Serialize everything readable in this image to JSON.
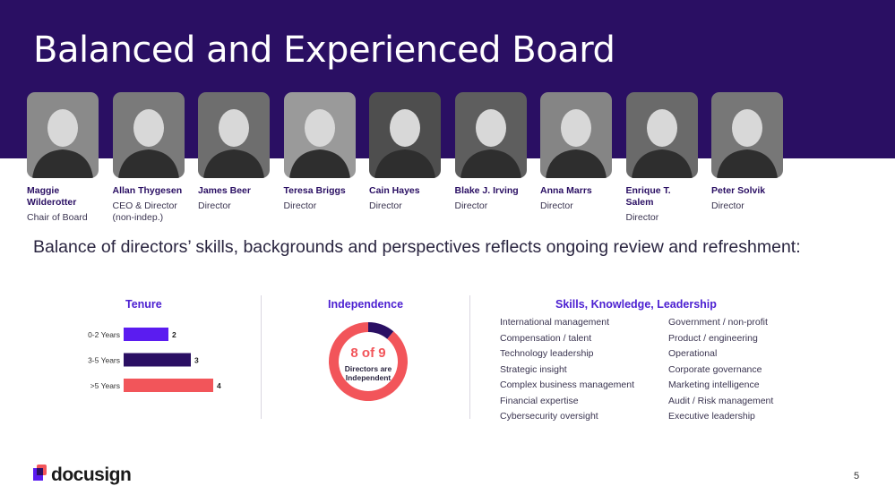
{
  "slide": {
    "title": "Balanced and Experienced Board",
    "lead": "Balance of directors’ skills, backgrounds and perspectives reflects ongoing review and refreshment:",
    "page_number": "5",
    "brand": "docusign"
  },
  "board": [
    {
      "name_line1": "Maggie",
      "name_line2": "Wilderotter",
      "role_line1": "Chair of Board",
      "role_line2": ""
    },
    {
      "name_line1": "Allan Thygesen",
      "name_line2": "",
      "role_line1": "CEO & Director",
      "role_line2": "(non-indep.)"
    },
    {
      "name_line1": "James Beer",
      "name_line2": "",
      "role_line1": "Director",
      "role_line2": ""
    },
    {
      "name_line1": "Teresa Briggs",
      "name_line2": "",
      "role_line1": "Director",
      "role_line2": ""
    },
    {
      "name_line1": "Cain Hayes",
      "name_line2": "",
      "role_line1": "Director",
      "role_line2": ""
    },
    {
      "name_line1": "Blake J. Irving",
      "name_line2": "",
      "role_line1": "Director",
      "role_line2": ""
    },
    {
      "name_line1": "Anna Marrs",
      "name_line2": "",
      "role_line1": "Director",
      "role_line2": ""
    },
    {
      "name_line1": "Enrique T.",
      "name_line2": "Salem",
      "role_line1": "Director",
      "role_line2": ""
    },
    {
      "name_line1": "Peter Solvik",
      "name_line2": "",
      "role_line1": "Director",
      "role_line2": ""
    }
  ],
  "tenure": {
    "heading": "Tenure"
  },
  "independence": {
    "heading": "Independence",
    "big_label": "8 of 9",
    "sub_line1": "Directors are",
    "sub_line2": "Independent",
    "independent": 8,
    "total": 9,
    "colors": {
      "independent": "#f2555a",
      "non_independent": "#2a0f63"
    }
  },
  "skills": {
    "heading": "Skills, Knowledge, Leadership",
    "left": [
      "International management",
      "Compensation / talent",
      "Technology leadership",
      "Strategic insight",
      "Complex business management",
      "Financial expertise",
      "Cybersecurity oversight"
    ],
    "right": [
      "Government / non-profit",
      "Product / engineering",
      "Operational",
      "Corporate governance",
      "Marketing intelligence",
      "Audit / Risk management",
      "Executive leadership"
    ]
  },
  "chart_data": {
    "type": "bar",
    "orientation": "horizontal",
    "title": "Tenure",
    "categories": [
      "0-2 Years",
      "3-5 Years",
      ">5 Years"
    ],
    "values": [
      2,
      3,
      4
    ],
    "colors": [
      "#5b1cf0",
      "#2a0f63",
      "#f2555a"
    ],
    "xlim": [
      0,
      4
    ],
    "grid": false,
    "data_labels": true
  },
  "colors": {
    "banner": "#2a0f63",
    "accent": "#4b1fd1",
    "coral": "#f2555a"
  }
}
